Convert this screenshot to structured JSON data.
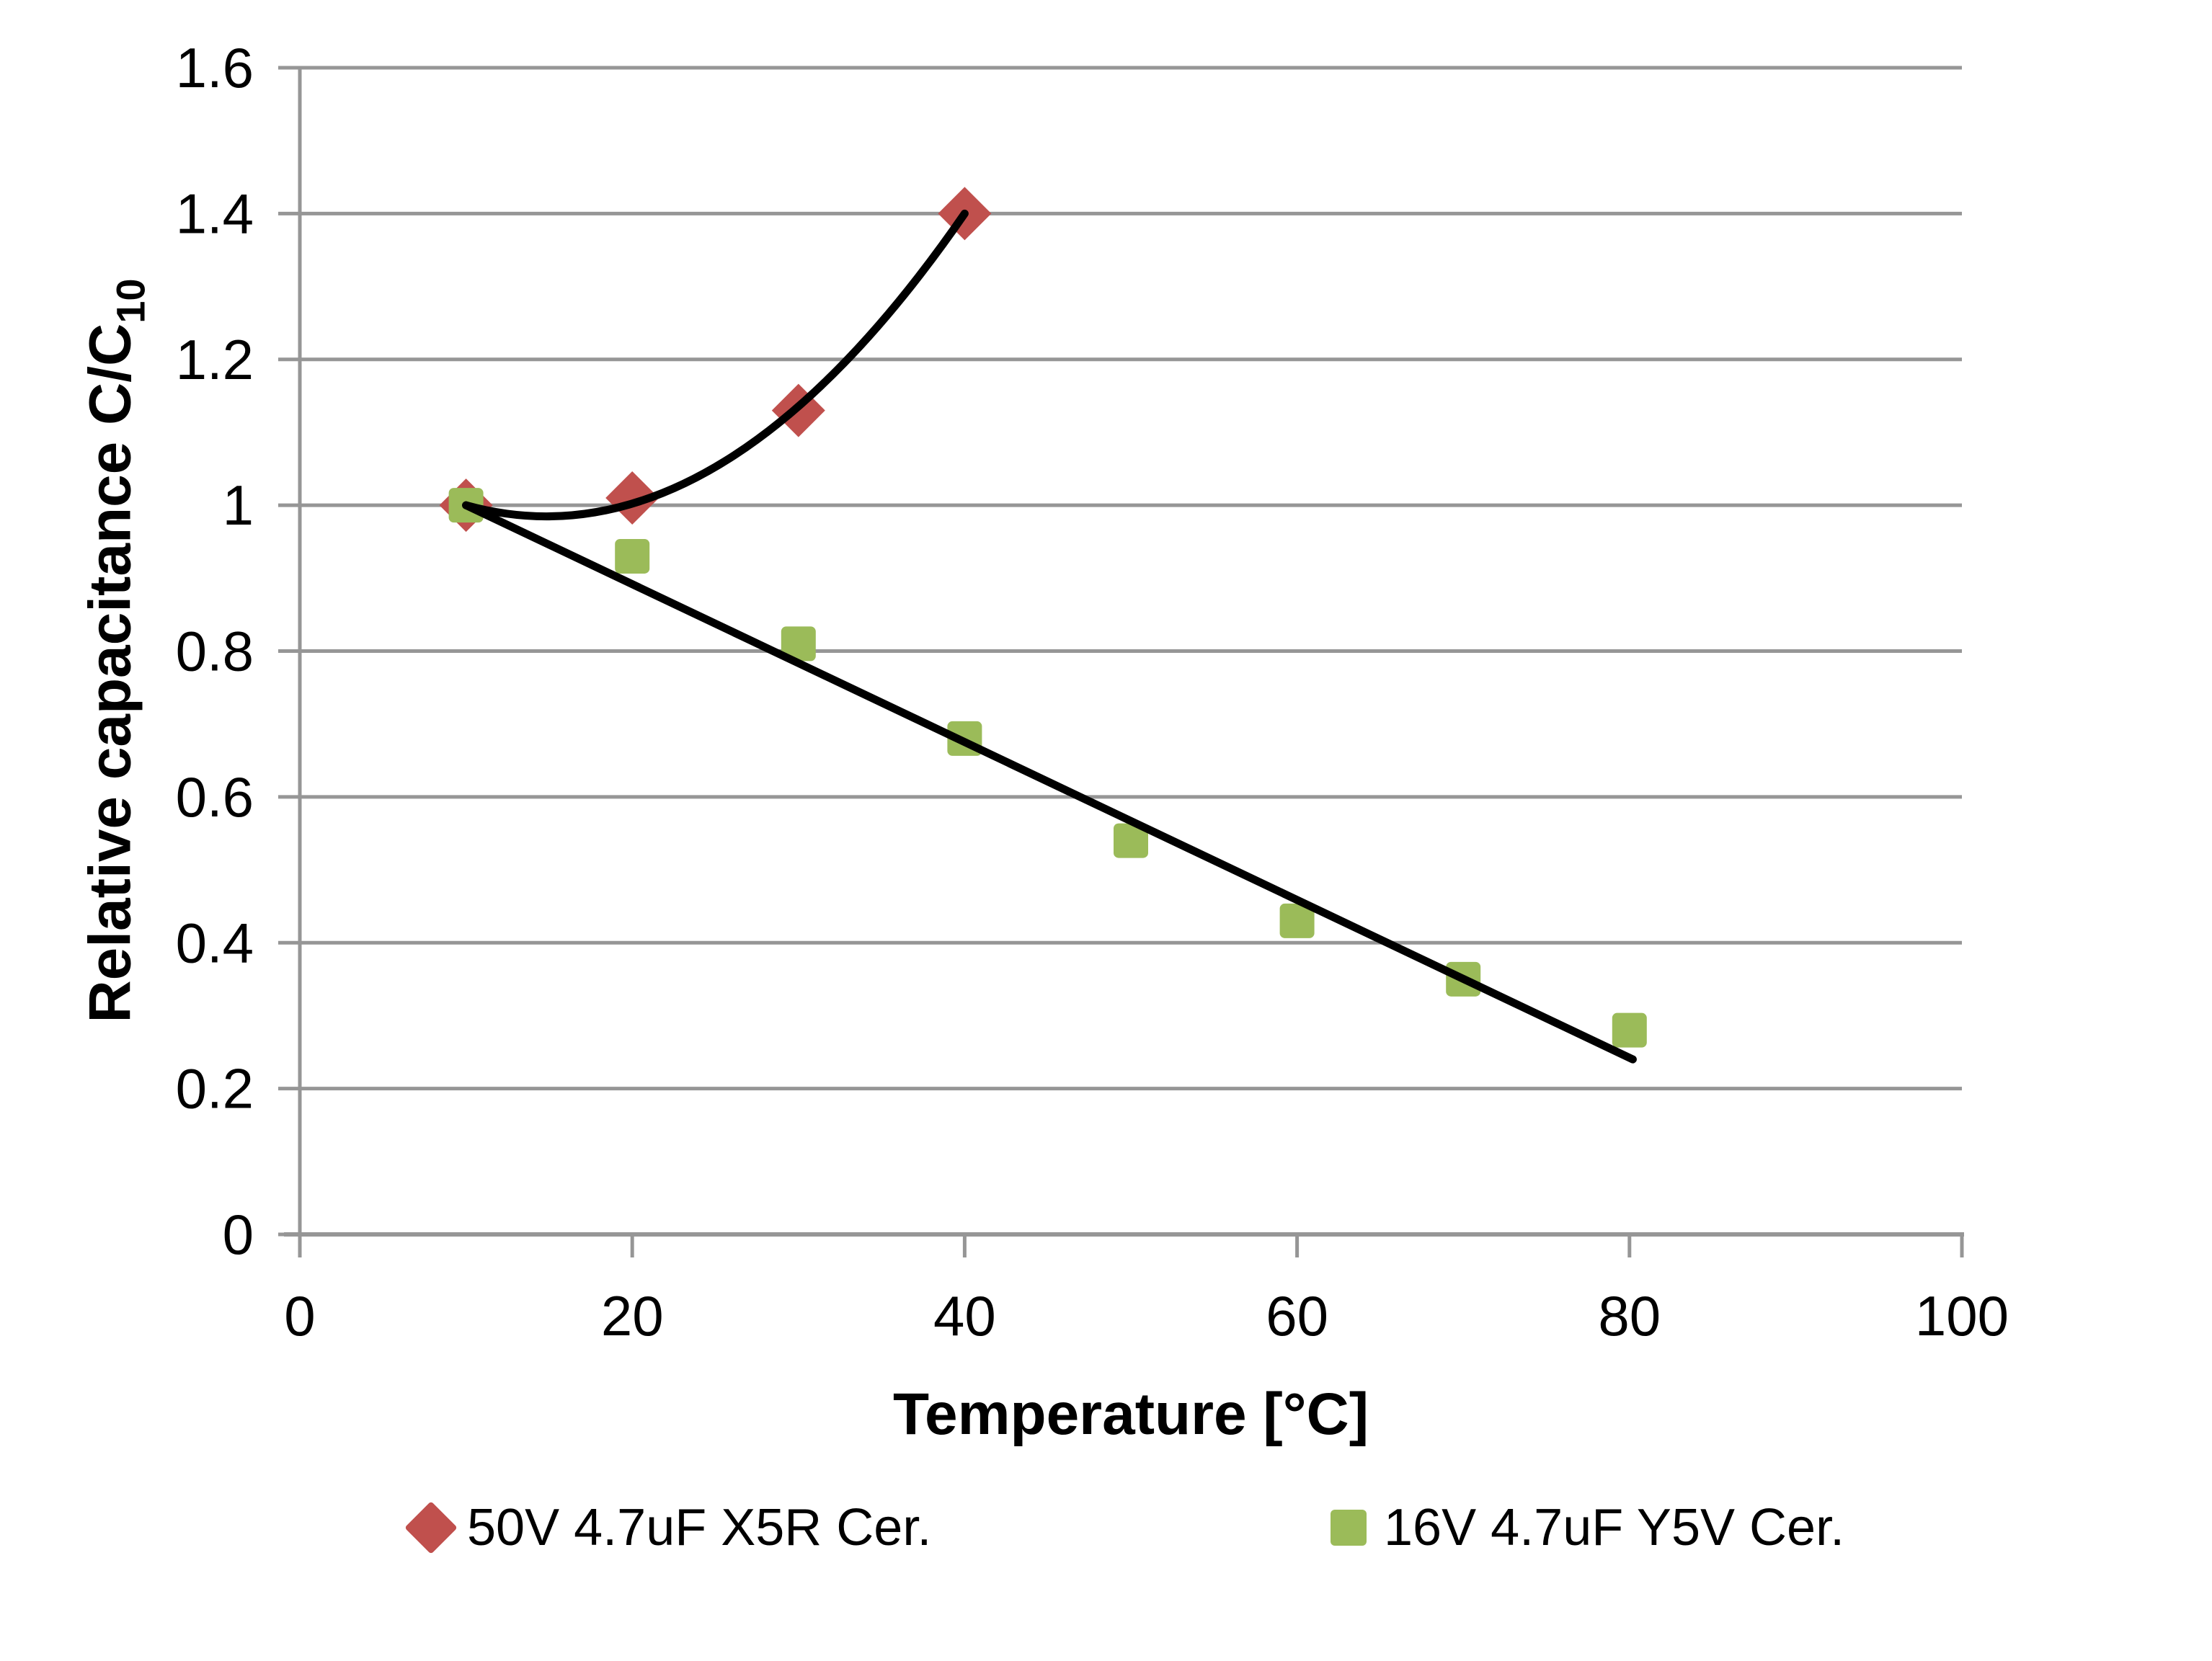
{
  "chart_data": {
    "type": "scatter",
    "title": "",
    "xlabel": "Temperature [°C]",
    "ylabel": "Relative capacitance C/C10",
    "ylabel_main": "Relative capacitance C/C",
    "ylabel_sub": "10",
    "xlim": [
      0,
      100
    ],
    "ylim": [
      0,
      1.6
    ],
    "x_ticks": [
      0,
      20,
      40,
      60,
      80,
      100
    ],
    "x_tick_labels": [
      "0",
      "20",
      "40",
      "60",
      "80",
      "100"
    ],
    "y_ticks": [
      0,
      0.2,
      0.4,
      0.6,
      0.8,
      1.0,
      1.2,
      1.4,
      1.6
    ],
    "y_tick_labels": [
      "0",
      "0.2",
      "0.4",
      "0.6",
      "0.8",
      "1",
      "1.2",
      "1.4",
      "1.6"
    ],
    "grid": "horizontal-only",
    "legend_position": "bottom",
    "axis_color": "#969696",
    "gridline_color": "#969696",
    "trendline_color": "#000000",
    "text_color": "#000000",
    "series": [
      {
        "name": "50V 4.7uF X5R Cer.",
        "marker": "diamond",
        "color": "#C0504D",
        "x": [
          10,
          20,
          30,
          40
        ],
        "y": [
          1.0,
          1.01,
          1.13,
          1.4
        ],
        "trendline": {
          "type": "quadratic",
          "start": [
            10,
            1.0
          ],
          "control": [
            25,
            0.905
          ],
          "end": [
            40,
            1.4
          ]
        }
      },
      {
        "name": "16V 4.7uF Y5V Cer.",
        "marker": "square",
        "color": "#9BBB59",
        "x": [
          10,
          20,
          30,
          40,
          50,
          60,
          70,
          80
        ],
        "y": [
          1.0,
          0.93,
          0.81,
          0.68,
          0.54,
          0.43,
          0.35,
          0.28
        ],
        "trendline": {
          "type": "linear",
          "start": [
            10,
            1.0
          ],
          "end": [
            80.2,
            0.24
          ]
        }
      }
    ]
  },
  "legend": {
    "items": [
      {
        "label": "50V 4.7uF X5R Cer.",
        "marker": "diamond",
        "color": "#C0504D"
      },
      {
        "label": "16V 4.7uF Y5V Cer.",
        "marker": "square",
        "color": "#9BBB59"
      }
    ]
  }
}
